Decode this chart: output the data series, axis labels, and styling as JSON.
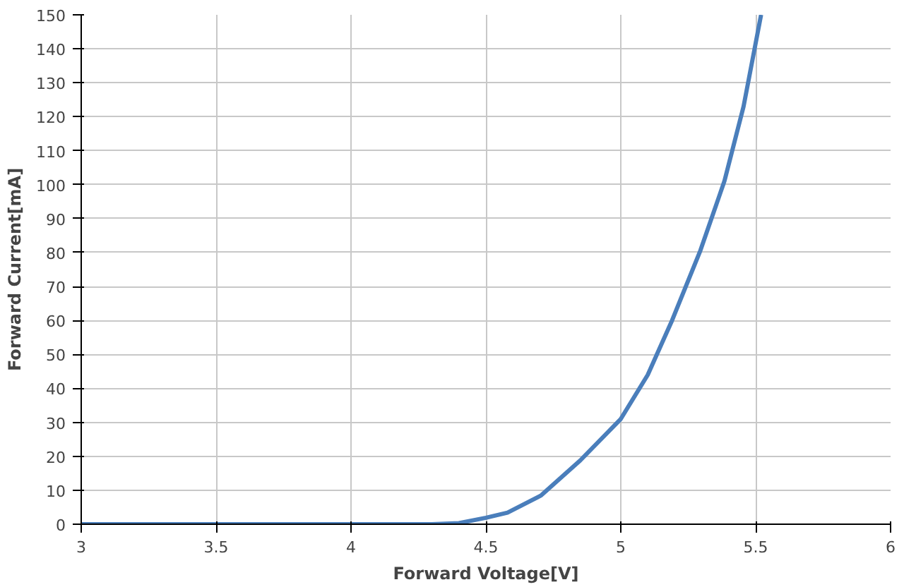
{
  "chart_data": {
    "type": "line",
    "xlabel": "Forward Voltage[V]",
    "ylabel": "Forward Current[mA]",
    "series": [
      {
        "color": "#4a7ebb",
        "x": [
          3,
          3.5,
          4,
          4.3,
          4.4,
          4.5,
          4.58,
          4.705,
          4.85,
          5.0,
          5.1,
          5.19,
          5.295,
          5.384,
          5.455,
          5.52
        ],
        "values": [
          0,
          0,
          0,
          0,
          0.3,
          1.9,
          3.4,
          8.5,
          18.8,
          31,
          44,
          60,
          80.6,
          101,
          123,
          150
        ]
      }
    ],
    "xlim": [
      3,
      6
    ],
    "ylim": [
      0,
      150
    ],
    "xticks": [
      3,
      3.5,
      4,
      4.5,
      5,
      5.5,
      6
    ],
    "yticks": [
      0,
      10,
      20,
      30,
      40,
      50,
      60,
      70,
      80,
      90,
      100,
      110,
      120,
      130,
      140,
      150
    ],
    "grid": true,
    "marker": "none",
    "line_style": "solid"
  }
}
